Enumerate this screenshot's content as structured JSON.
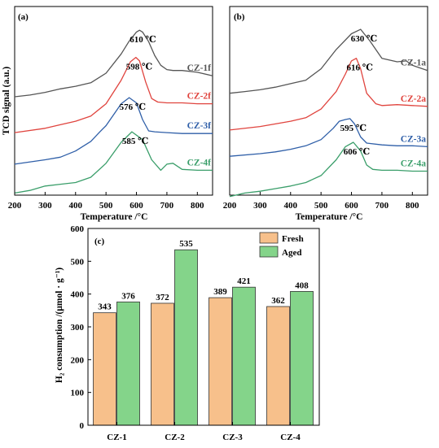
{
  "chart_data": [
    {
      "panel": "(a)",
      "type": "line",
      "xlabel": "Temperature /°C",
      "ylabel": "TCD signal (a.u.)",
      "xlim": [
        200,
        850
      ],
      "xticks": [
        "200",
        "300",
        "400",
        "500",
        "600",
        "700",
        "800"
      ],
      "series": [
        {
          "name": "CZ-1f",
          "color": "#555555",
          "peak_label": "610 ℃",
          "x": [
            200,
            250,
            300,
            350,
            400,
            450,
            500,
            550,
            575,
            600,
            610,
            620,
            640,
            660,
            680,
            700,
            720,
            750,
            800,
            850
          ],
          "y": [
            0.86,
            0.88,
            0.91,
            0.95,
            0.98,
            1.02,
            1.13,
            1.35,
            1.49,
            1.6,
            1.62,
            1.6,
            1.49,
            1.33,
            1.22,
            1.17,
            1.16,
            1.16,
            1.14,
            1.1
          ]
        },
        {
          "name": "CZ-2f",
          "color": "#e0443e",
          "peak_label": "598 ℃",
          "x": [
            200,
            300,
            350,
            400,
            450,
            500,
            550,
            580,
            598,
            610,
            630,
            650,
            670,
            700,
            750,
            800,
            850
          ],
          "y": [
            0.45,
            0.5,
            0.54,
            0.58,
            0.64,
            0.78,
            1.05,
            1.26,
            1.31,
            1.27,
            1.03,
            0.84,
            0.8,
            0.79,
            0.79,
            0.78,
            0.78
          ]
        },
        {
          "name": "CZ-3f",
          "color": "#2f5fa8",
          "peak_label": "576 ℃",
          "x": [
            200,
            300,
            350,
            400,
            450,
            480,
            500,
            550,
            576,
            600,
            620,
            640,
            660,
            700,
            750,
            800,
            850
          ],
          "y": [
            0.09,
            0.14,
            0.17,
            0.24,
            0.35,
            0.46,
            0.53,
            0.78,
            0.85,
            0.79,
            0.6,
            0.47,
            0.46,
            0.45,
            0.44,
            0.44,
            0.44
          ]
        },
        {
          "name": "CZ-4f",
          "color": "#3a9e6a",
          "peak_label": "585 ℃",
          "x": [
            200,
            250,
            300,
            350,
            400,
            450,
            500,
            550,
            585,
            620,
            650,
            680,
            700,
            720,
            750,
            800,
            850
          ],
          "y": [
            -0.24,
            -0.21,
            -0.16,
            -0.14,
            -0.12,
            -0.06,
            0.1,
            0.34,
            0.46,
            0.37,
            0.14,
            0.02,
            0.09,
            0.1,
            0.03,
            0.02,
            0.02
          ]
        }
      ]
    },
    {
      "panel": "(b)",
      "type": "line",
      "xlabel": "Temperature /°C",
      "ylabel": "",
      "xlim": [
        200,
        850
      ],
      "xticks": [
        "200",
        "300",
        "400",
        "500",
        "600",
        "700",
        "800"
      ],
      "series": [
        {
          "name": "CZ-1a",
          "color": "#555555",
          "peak_label": "630 ℃",
          "x": [
            200,
            250,
            300,
            350,
            400,
            450,
            500,
            550,
            600,
            630,
            660,
            700,
            750,
            780,
            800,
            850
          ],
          "y": [
            0.9,
            0.92,
            0.94,
            0.97,
            1.01,
            1.05,
            1.18,
            1.4,
            1.58,
            1.63,
            1.5,
            1.3,
            1.26,
            1.27,
            1.22,
            1.16
          ]
        },
        {
          "name": "CZ-2a",
          "color": "#e0443e",
          "peak_label": "616 ℃",
          "x": [
            200,
            300,
            350,
            400,
            450,
            500,
            550,
            580,
            600,
            616,
            630,
            650,
            680,
            700,
            750,
            800,
            850
          ],
          "y": [
            0.48,
            0.52,
            0.55,
            0.58,
            0.62,
            0.72,
            0.92,
            1.12,
            1.27,
            1.3,
            1.18,
            0.9,
            0.78,
            0.76,
            0.77,
            0.76,
            0.75
          ]
        },
        {
          "name": "CZ-3a",
          "color": "#2f5fa8",
          "peak_label": "595 ℃",
          "x": [
            200,
            300,
            350,
            400,
            450,
            500,
            540,
            560,
            580,
            595,
            610,
            630,
            650,
            700,
            750,
            800,
            850
          ],
          "y": [
            0.18,
            0.21,
            0.23,
            0.26,
            0.3,
            0.37,
            0.5,
            0.58,
            0.6,
            0.61,
            0.55,
            0.4,
            0.33,
            0.31,
            0.3,
            0.3,
            0.29
          ]
        },
        {
          "name": "CZ-4a",
          "color": "#3a9e6a",
          "peak_label": "606 ℃",
          "x": [
            200,
            250,
            300,
            350,
            400,
            450,
            500,
            550,
            580,
            606,
            630,
            650,
            670,
            700,
            750,
            800,
            850
          ],
          "y": [
            -0.28,
            -0.24,
            -0.22,
            -0.19,
            -0.16,
            -0.12,
            -0.04,
            0.14,
            0.29,
            0.34,
            0.24,
            0.08,
            0.03,
            0.02,
            0.02,
            0.01,
            0.01
          ]
        }
      ]
    },
    {
      "panel": "(c)",
      "type": "bar",
      "ylabel_text": "H₂ consumption /(μmol · g⁻¹)",
      "ylim": [
        0,
        600
      ],
      "yticks": [
        "0",
        "100",
        "200",
        "300",
        "400",
        "500",
        "600"
      ],
      "categories": [
        "CZ-1",
        "CZ-2",
        "CZ-3",
        "CZ-4"
      ],
      "legend_position": "top-right",
      "series": [
        {
          "name": "Fresh",
          "color": "#f7c08b",
          "values": [
            343,
            372,
            389,
            362
          ]
        },
        {
          "name": "Aged",
          "color": "#84d48a",
          "values": [
            376,
            535,
            421,
            408
          ]
        }
      ]
    }
  ]
}
